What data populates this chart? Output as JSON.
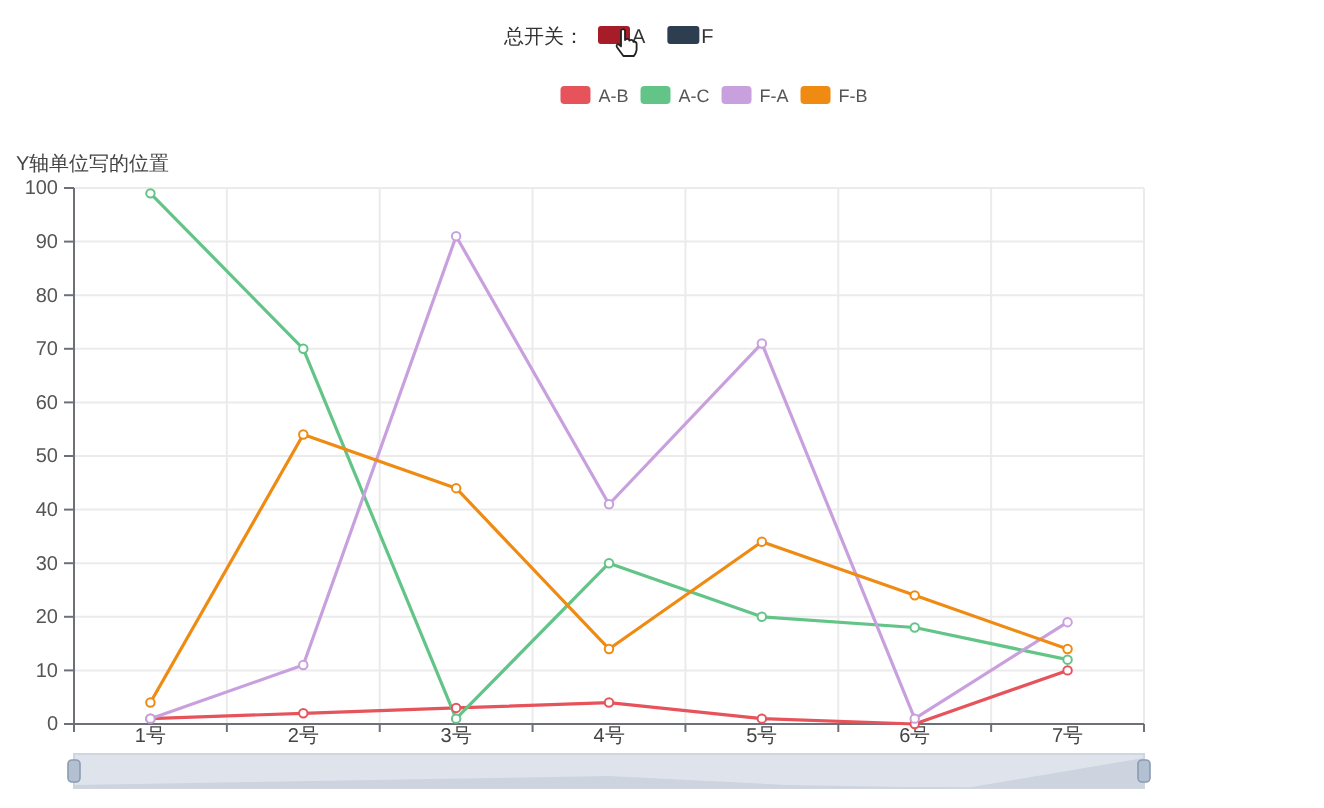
{
  "chart_data": {
    "type": "line",
    "ylabel": "Y轴单位写的位置",
    "annotations": [
      "总开关：",
      "A",
      "F"
    ],
    "categories": [
      "1号",
      "2号",
      "3号",
      "4号",
      "5号",
      "6号",
      "7号"
    ],
    "series": [
      {
        "name": "A-B",
        "color": "#e6535b",
        "values": [
          1,
          2,
          3,
          4,
          1,
          0,
          10
        ]
      },
      {
        "name": "A-C",
        "color": "#62c486",
        "values": [
          99,
          70,
          1,
          30,
          20,
          18,
          12
        ]
      },
      {
        "name": "F-A",
        "color": "#c9a0de",
        "values": [
          1,
          11,
          91,
          41,
          71,
          1,
          19
        ]
      },
      {
        "name": "F-B",
        "color": "#ef8a12",
        "values": [
          4,
          54,
          44,
          14,
          34,
          24,
          14
        ]
      }
    ],
    "ylim": [
      0,
      100
    ],
    "yticks": [
      0,
      10,
      20,
      30,
      40,
      50,
      60,
      70,
      80,
      90,
      100
    ],
    "grid": true,
    "legend": "top",
    "marker": "circle"
  }
}
